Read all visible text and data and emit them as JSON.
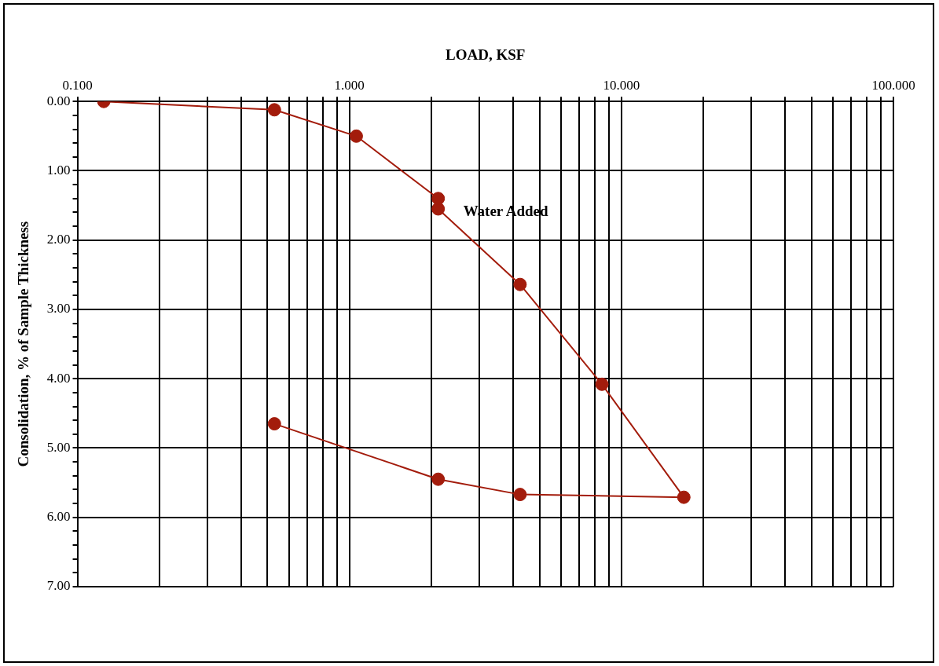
{
  "chart_data": {
    "type": "line",
    "xlabel": "LOAD, KSF",
    "ylabel": "Consolidation, % of Sample Thickness",
    "log": "x",
    "grid": true,
    "legend": false,
    "marker": "circle",
    "line_style": "solid",
    "xlim": [
      0.1,
      100
    ],
    "xticks": [
      {
        "value": 0.1,
        "label": "0.100"
      },
      {
        "value": 0.2,
        "label": null
      },
      {
        "value": 0.3,
        "label": null
      },
      {
        "value": 0.4,
        "label": null
      },
      {
        "value": 0.5,
        "label": null
      },
      {
        "value": 0.6,
        "label": null
      },
      {
        "value": 0.7,
        "label": null
      },
      {
        "value": 0.8,
        "label": null
      },
      {
        "value": 0.9,
        "label": null
      },
      {
        "value": 1,
        "label": "1.000"
      },
      {
        "value": 2,
        "label": null
      },
      {
        "value": 3,
        "label": null
      },
      {
        "value": 4,
        "label": null
      },
      {
        "value": 5,
        "label": null
      },
      {
        "value": 6,
        "label": null
      },
      {
        "value": 7,
        "label": null
      },
      {
        "value": 8,
        "label": null
      },
      {
        "value": 9,
        "label": null
      },
      {
        "value": 10,
        "label": "10.000"
      },
      {
        "value": 20,
        "label": null
      },
      {
        "value": 30,
        "label": null
      },
      {
        "value": 40,
        "label": null
      },
      {
        "value": 50,
        "label": null
      },
      {
        "value": 60,
        "label": null
      },
      {
        "value": 70,
        "label": null
      },
      {
        "value": 80,
        "label": null
      },
      {
        "value": 90,
        "label": null
      },
      {
        "value": 100,
        "label": "100.000"
      }
    ],
    "ylim": [
      7,
      0
    ],
    "yticks": [
      {
        "value": 0,
        "label": "0.00"
      },
      {
        "value": 0.2,
        "label": null
      },
      {
        "value": 0.4,
        "label": null
      },
      {
        "value": 0.6,
        "label": null
      },
      {
        "value": 0.8,
        "label": null
      },
      {
        "value": 1,
        "label": "1.00"
      },
      {
        "value": 1.2,
        "label": null
      },
      {
        "value": 1.4,
        "label": null
      },
      {
        "value": 1.6,
        "label": null
      },
      {
        "value": 1.8,
        "label": null
      },
      {
        "value": 2,
        "label": "2.00"
      },
      {
        "value": 2.2,
        "label": null
      },
      {
        "value": 2.4,
        "label": null
      },
      {
        "value": 2.6,
        "label": null
      },
      {
        "value": 2.8,
        "label": null
      },
      {
        "value": 3,
        "label": "3.00"
      },
      {
        "value": 3.2,
        "label": null
      },
      {
        "value": 3.4,
        "label": null
      },
      {
        "value": 3.6,
        "label": null
      },
      {
        "value": 3.8,
        "label": null
      },
      {
        "value": 4,
        "label": "4.00"
      },
      {
        "value": 4.2,
        "label": null
      },
      {
        "value": 4.4,
        "label": null
      },
      {
        "value": 4.6,
        "label": null
      },
      {
        "value": 4.8,
        "label": null
      },
      {
        "value": 5,
        "label": "5.00"
      },
      {
        "value": 5.2,
        "label": null
      },
      {
        "value": 5.4,
        "label": null
      },
      {
        "value": 5.6,
        "label": null
      },
      {
        "value": 5.8,
        "label": null
      },
      {
        "value": 6,
        "label": "6.00"
      },
      {
        "value": 6.2,
        "label": null
      },
      {
        "value": 6.4,
        "label": null
      },
      {
        "value": 6.6,
        "label": null
      },
      {
        "value": 6.8,
        "label": null
      },
      {
        "value": 7,
        "label": "7.00"
      }
    ],
    "series": [
      {
        "color": "#a31c0c",
        "x": [
          0.125,
          0.53,
          1.06,
          2.12
        ],
        "values": [
          0,
          0.12,
          0.5,
          1.4
        ]
      },
      {
        "color": "#a31c0c",
        "x": [
          2.12,
          4.24,
          8.48,
          16.96,
          4.24,
          2.12,
          0.53
        ],
        "values": [
          1.55,
          2.64,
          4.08,
          5.71,
          5.67,
          5.45,
          4.65
        ]
      }
    ],
    "annotations": [
      {
        "text": "Water Added",
        "x": 2.12,
        "y": 1.55
      }
    ]
  }
}
